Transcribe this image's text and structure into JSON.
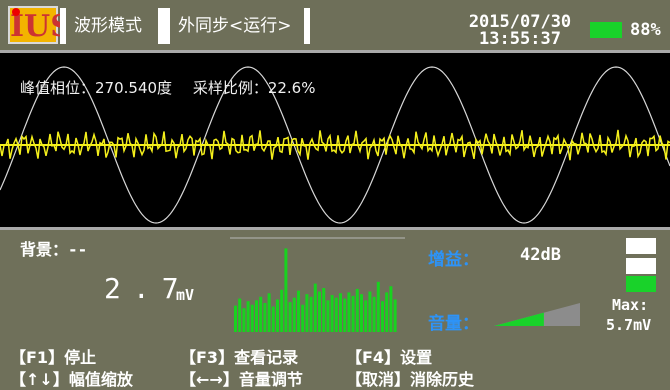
{
  "header": {
    "logo": "IUS",
    "mode": "波形模式",
    "sync": "外同步<运行>",
    "date": "2015/07/30",
    "time": "13:55:37",
    "battery": "88%",
    "battery_level": 0.88
  },
  "scope": {
    "peak_phase": "峰值相位：270.540度",
    "sampling_ratio": "采样比例：22.6%",
    "colors": {
      "background": "#000000",
      "sine": "#d7d7d7",
      "signal": "#f4ef1b"
    }
  },
  "readout": {
    "background_label": "背景：--",
    "value": "2.7",
    "unit": "mV",
    "gain_label": "增益：",
    "gain_value": "42dB",
    "volume_label": "音量：",
    "volume_level": 0.58,
    "max_label": "Max:",
    "max_value": "5.7mV",
    "bar_values": [
      30,
      38,
      27,
      35,
      31,
      36,
      40,
      33,
      44,
      29,
      37,
      48,
      95,
      34,
      39,
      47,
      31,
      43,
      40,
      55,
      46,
      50,
      36,
      42,
      39,
      44,
      38,
      45,
      41,
      49,
      43,
      36,
      46,
      40,
      57,
      35,
      45,
      52,
      37
    ]
  },
  "footer": {
    "f1": "【F1】停止",
    "f3": "【F3】查看记录",
    "f4": "【F4】设置",
    "amp": "【↑↓】幅值缩放",
    "vol": "【←→】音量调节",
    "clear": "【取消】消除历史"
  }
}
